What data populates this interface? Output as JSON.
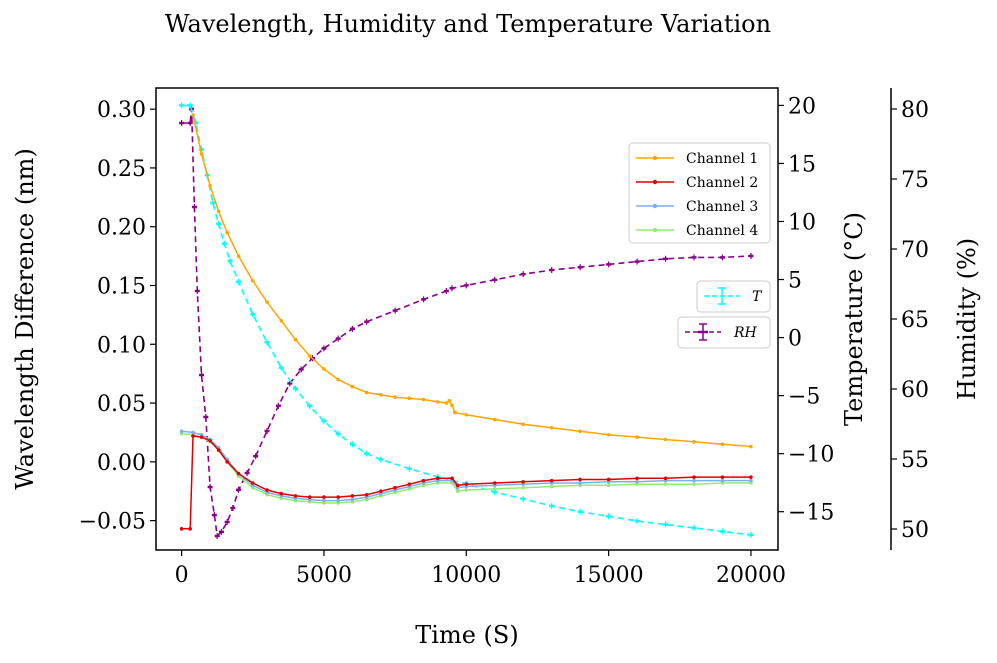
{
  "chart_data": {
    "type": "line",
    "title": "Wavelength, Humidity and Temperature Variation",
    "xlabel": "Time (S)",
    "ylabel_left": "Wavelength Difference (nm)",
    "ylabel_right": "Temperature (°C)",
    "ylabel_far_right": "Humidity (%)",
    "xlim": [
      -900,
      20950
    ],
    "ylim_left": [
      -0.075,
      0.318
    ],
    "ylim_temp": [
      -18.3,
      21.5
    ],
    "ylim_humidity": [
      48.5,
      81.5
    ],
    "x_ticks": [
      0,
      5000,
      10000,
      15000,
      20000
    ],
    "x_tick_labels": [
      "0",
      "5000",
      "10000",
      "15000",
      "20000"
    ],
    "left_ticks": [
      -0.05,
      0.0,
      0.05,
      0.1,
      0.15,
      0.2,
      0.25,
      0.3
    ],
    "left_tick_labels": [
      "−0.05",
      "0.00",
      "0.05",
      "0.10",
      "0.15",
      "0.20",
      "0.25",
      "0.30"
    ],
    "temp_ticks": [
      -15,
      -10,
      -5,
      0,
      5,
      10,
      15,
      20
    ],
    "temp_tick_labels": [
      "−15",
      "−10",
      "−5",
      "0",
      "5",
      "10",
      "15",
      "20"
    ],
    "humidity_ticks": [
      50,
      55,
      60,
      65,
      70,
      75,
      80
    ],
    "humidity_tick_labels": [
      "50",
      "55",
      "60",
      "65",
      "70",
      "75",
      "80"
    ],
    "series": [
      {
        "name": "Channel 1",
        "axis": "left",
        "color": "#ffa500",
        "marker": "dot",
        "points": [
          [
            400,
            0.295
          ],
          [
            700,
            0.262
          ],
          [
            1000,
            0.235
          ],
          [
            1300,
            0.213
          ],
          [
            1600,
            0.195
          ],
          [
            2000,
            0.175
          ],
          [
            2500,
            0.154
          ],
          [
            3000,
            0.136
          ],
          [
            3500,
            0.12
          ],
          [
            4000,
            0.104
          ],
          [
            4500,
            0.09
          ],
          [
            5000,
            0.079
          ],
          [
            5500,
            0.07
          ],
          [
            6000,
            0.064
          ],
          [
            6500,
            0.059
          ],
          [
            7000,
            0.057
          ],
          [
            7500,
            0.055
          ],
          [
            8000,
            0.054
          ],
          [
            8500,
            0.053
          ],
          [
            9000,
            0.051
          ],
          [
            9300,
            0.05
          ],
          [
            9400,
            0.052
          ],
          [
            9500,
            0.048
          ],
          [
            9600,
            0.042
          ],
          [
            10000,
            0.04
          ],
          [
            11000,
            0.036
          ],
          [
            12000,
            0.032
          ],
          [
            13000,
            0.029
          ],
          [
            14000,
            0.026
          ],
          [
            15000,
            0.023
          ],
          [
            16000,
            0.021
          ],
          [
            17000,
            0.019
          ],
          [
            18000,
            0.017
          ],
          [
            19000,
            0.015
          ],
          [
            20000,
            0.013
          ]
        ]
      },
      {
        "name": "Channel 2",
        "axis": "left",
        "color": "#e00000",
        "marker": "dot",
        "points": [
          [
            0,
            -0.057
          ],
          [
            300,
            -0.057
          ],
          [
            400,
            0.022
          ],
          [
            700,
            0.021
          ],
          [
            1000,
            0.018
          ],
          [
            1300,
            0.01
          ],
          [
            1600,
            0.0
          ],
          [
            2000,
            -0.01
          ],
          [
            2500,
            -0.018
          ],
          [
            3000,
            -0.024
          ],
          [
            3500,
            -0.027
          ],
          [
            4000,
            -0.029
          ],
          [
            4500,
            -0.03
          ],
          [
            5000,
            -0.03
          ],
          [
            5500,
            -0.03
          ],
          [
            6000,
            -0.029
          ],
          [
            6500,
            -0.028
          ],
          [
            7000,
            -0.025
          ],
          [
            7500,
            -0.022
          ],
          [
            8000,
            -0.019
          ],
          [
            8500,
            -0.016
          ],
          [
            9000,
            -0.014
          ],
          [
            9500,
            -0.014
          ],
          [
            9700,
            -0.02
          ],
          [
            10000,
            -0.019
          ],
          [
            11000,
            -0.018
          ],
          [
            12000,
            -0.017
          ],
          [
            13000,
            -0.016
          ],
          [
            14000,
            -0.015
          ],
          [
            15000,
            -0.015
          ],
          [
            16000,
            -0.014
          ],
          [
            17000,
            -0.014
          ],
          [
            18000,
            -0.013
          ],
          [
            19000,
            -0.013
          ],
          [
            20000,
            -0.013
          ]
        ]
      },
      {
        "name": "Channel 3",
        "axis": "left",
        "color": "#79b0f0",
        "marker": "dot",
        "points": [
          [
            0,
            0.026
          ],
          [
            400,
            0.025
          ],
          [
            700,
            0.023
          ],
          [
            1000,
            0.019
          ],
          [
            1300,
            0.012
          ],
          [
            1600,
            0.002
          ],
          [
            2000,
            -0.01
          ],
          [
            2500,
            -0.02
          ],
          [
            3000,
            -0.026
          ],
          [
            3500,
            -0.029
          ],
          [
            4000,
            -0.031
          ],
          [
            4500,
            -0.032
          ],
          [
            5000,
            -0.033
          ],
          [
            5500,
            -0.033
          ],
          [
            6000,
            -0.032
          ],
          [
            6500,
            -0.03
          ],
          [
            7000,
            -0.027
          ],
          [
            7500,
            -0.024
          ],
          [
            8000,
            -0.021
          ],
          [
            8500,
            -0.018
          ],
          [
            9000,
            -0.016
          ],
          [
            9500,
            -0.016
          ],
          [
            9700,
            -0.022
          ],
          [
            10000,
            -0.021
          ],
          [
            11000,
            -0.02
          ],
          [
            12000,
            -0.019
          ],
          [
            13000,
            -0.018
          ],
          [
            14000,
            -0.018
          ],
          [
            15000,
            -0.017
          ],
          [
            16000,
            -0.017
          ],
          [
            17000,
            -0.016
          ],
          [
            18000,
            -0.016
          ],
          [
            19000,
            -0.016
          ],
          [
            20000,
            -0.016
          ]
        ]
      },
      {
        "name": "Channel 4",
        "axis": "left",
        "color": "#90ee70",
        "marker": "dot",
        "points": [
          [
            0,
            0.024
          ],
          [
            400,
            0.023
          ],
          [
            700,
            0.021
          ],
          [
            1000,
            0.017
          ],
          [
            1300,
            0.01
          ],
          [
            1600,
            0.0
          ],
          [
            2000,
            -0.012
          ],
          [
            2500,
            -0.022
          ],
          [
            3000,
            -0.028
          ],
          [
            3500,
            -0.031
          ],
          [
            4000,
            -0.033
          ],
          [
            4500,
            -0.034
          ],
          [
            5000,
            -0.035
          ],
          [
            5500,
            -0.035
          ],
          [
            6000,
            -0.034
          ],
          [
            6500,
            -0.032
          ],
          [
            7000,
            -0.029
          ],
          [
            7500,
            -0.026
          ],
          [
            8000,
            -0.023
          ],
          [
            8500,
            -0.02
          ],
          [
            9000,
            -0.018
          ],
          [
            9500,
            -0.018
          ],
          [
            9700,
            -0.025
          ],
          [
            10000,
            -0.024
          ],
          [
            11000,
            -0.023
          ],
          [
            12000,
            -0.022
          ],
          [
            13000,
            -0.021
          ],
          [
            14000,
            -0.02
          ],
          [
            15000,
            -0.02
          ],
          [
            16000,
            -0.019
          ],
          [
            17000,
            -0.019
          ],
          [
            18000,
            -0.019
          ],
          [
            19000,
            -0.018
          ],
          [
            20000,
            -0.018
          ]
        ]
      },
      {
        "name": "T",
        "axis": "temp",
        "color": "#00ffff",
        "style": "dashed",
        "errorbars": true,
        "points": [
          [
            0,
            20
          ],
          [
            300,
            20
          ],
          [
            500,
            18.5
          ],
          [
            700,
            16.2
          ],
          [
            900,
            14.0
          ],
          [
            1100,
            11.6
          ],
          [
            1300,
            9.8
          ],
          [
            1500,
            8.1
          ],
          [
            1700,
            6.6
          ],
          [
            2000,
            4.8
          ],
          [
            2500,
            2.0
          ],
          [
            3000,
            -0.4
          ],
          [
            3500,
            -2.6
          ],
          [
            4000,
            -4.4
          ],
          [
            4500,
            -5.9
          ],
          [
            5000,
            -7.2
          ],
          [
            5500,
            -8.3
          ],
          [
            6000,
            -9.2
          ],
          [
            6500,
            -10.0
          ],
          [
            7000,
            -10.5
          ],
          [
            8000,
            -11.3
          ],
          [
            9000,
            -12.0
          ],
          [
            9500,
            -12.3
          ],
          [
            10000,
            -12.6
          ],
          [
            11000,
            -13.3
          ],
          [
            12000,
            -13.9
          ],
          [
            13000,
            -14.5
          ],
          [
            14000,
            -15.0
          ],
          [
            15000,
            -15.4
          ],
          [
            16000,
            -15.8
          ],
          [
            17000,
            -16.1
          ],
          [
            18000,
            -16.4
          ],
          [
            19000,
            -16.7
          ],
          [
            20000,
            -17.0
          ]
        ]
      },
      {
        "name": "RH",
        "axis": "humidity",
        "color": "#8b008b",
        "style": "dashed",
        "errorbars": true,
        "points": [
          [
            0,
            79
          ],
          [
            300,
            79
          ],
          [
            350,
            80
          ],
          [
            450,
            73
          ],
          [
            550,
            67
          ],
          [
            700,
            61
          ],
          [
            850,
            58
          ],
          [
            1000,
            53
          ],
          [
            1150,
            51
          ],
          [
            1250,
            49.5
          ],
          [
            1400,
            49.8
          ],
          [
            1600,
            50.5
          ],
          [
            1800,
            51.5
          ],
          [
            2000,
            52.8
          ],
          [
            2300,
            54.0
          ],
          [
            2600,
            55.2
          ],
          [
            3000,
            57.0
          ],
          [
            3400,
            58.8
          ],
          [
            3800,
            60.4
          ],
          [
            4200,
            61.4
          ],
          [
            4600,
            62.2
          ],
          [
            5000,
            62.9
          ],
          [
            5500,
            63.6
          ],
          [
            6000,
            64.3
          ],
          [
            6500,
            64.8
          ],
          [
            7500,
            65.6
          ],
          [
            8500,
            66.4
          ],
          [
            9300,
            67.0
          ],
          [
            9500,
            67.2
          ],
          [
            10000,
            67.4
          ],
          [
            11000,
            67.8
          ],
          [
            12000,
            68.2
          ],
          [
            13000,
            68.5
          ],
          [
            14000,
            68.7
          ],
          [
            15000,
            68.9
          ],
          [
            16000,
            69.1
          ],
          [
            17000,
            69.3
          ],
          [
            18000,
            69.4
          ],
          [
            19000,
            69.4
          ],
          [
            20000,
            69.5
          ]
        ]
      }
    ],
    "legend_channels": [
      "Channel 1",
      "Channel 2",
      "Channel 3",
      "Channel 4"
    ],
    "legend_T": "T",
    "legend_RH": "RH",
    "legend_placement": "right-center"
  },
  "colors": {
    "channel1": "#ffa500",
    "channel2": "#e00000",
    "channel3": "#79b0f0",
    "channel4": "#90ee70",
    "temperature": "#00ffff",
    "humidity": "#8b008b"
  }
}
